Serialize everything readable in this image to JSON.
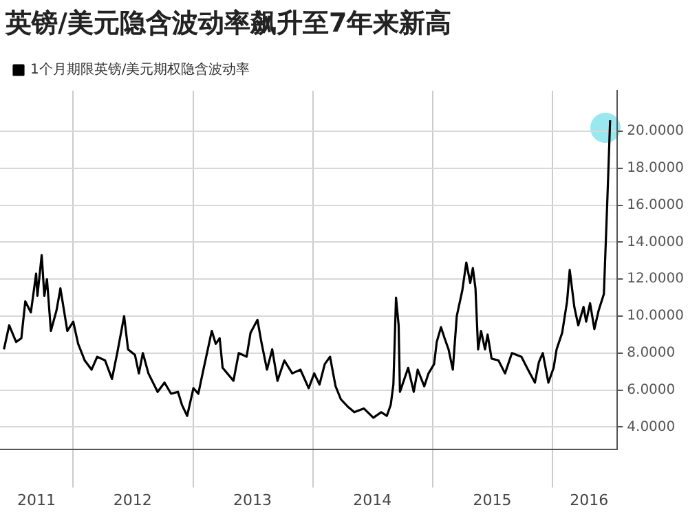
{
  "chart_data": {
    "type": "line",
    "title": "英镑/美元隐含波动率飙升至7年来新高",
    "legend": "top left",
    "grid": true,
    "marker": "none",
    "line_style": "solid",
    "xlim": [
      "2011-05-24",
      "2016-07-16"
    ],
    "xticks": [
      {
        "value": "2011-09-12",
        "label": "2011"
      },
      {
        "value": "2012-01-01",
        "label": null
      },
      {
        "value": "2012-07-01",
        "label": "2012"
      },
      {
        "value": "2013-01-01",
        "label": null
      },
      {
        "value": "2013-07-01",
        "label": "2013"
      },
      {
        "value": "2014-01-01",
        "label": null
      },
      {
        "value": "2014-07-01",
        "label": "2014"
      },
      {
        "value": "2015-01-01",
        "label": null
      },
      {
        "value": "2015-07-01",
        "label": "2015"
      },
      {
        "value": "2016-01-01",
        "label": null
      },
      {
        "value": "2016-04-21",
        "label": "2016"
      }
    ],
    "ylim": [
      2.8,
      22.2
    ],
    "yticks": [
      {
        "value": 4,
        "label": "4.0000"
      },
      {
        "value": 6,
        "label": "6.0000"
      },
      {
        "value": 8,
        "label": "8.0000"
      },
      {
        "value": 10,
        "label": "10.0000"
      },
      {
        "value": 12,
        "label": "12.0000"
      },
      {
        "value": 14,
        "label": "14.0000"
      },
      {
        "value": 16,
        "label": "16.0000"
      },
      {
        "value": 18,
        "label": "18.0000"
      },
      {
        "value": 20,
        "label": "20.0000"
      }
    ],
    "x": [
      "2011-06-05",
      "2011-06-21",
      "2011-07-12",
      "2011-07-28",
      "2011-08-09",
      "2011-08-26",
      "2011-09-11",
      "2011-09-15",
      "2011-09-28",
      "2011-10-06",
      "2011-10-14",
      "2011-10-26",
      "2011-11-12",
      "2011-11-24",
      "2011-12-15",
      "2012-01-02",
      "2012-01-17",
      "2012-02-06",
      "2012-02-27",
      "2012-03-15",
      "2012-04-08",
      "2012-04-29",
      "2012-05-15",
      "2012-06-05",
      "2012-06-17",
      "2012-07-08",
      "2012-07-20",
      "2012-08-01",
      "2012-08-18",
      "2012-09-15",
      "2012-10-06",
      "2012-10-26",
      "2012-11-16",
      "2012-11-28",
      "2012-12-14",
      "2013-01-02",
      "2013-01-17",
      "2013-01-30",
      "2013-02-27",
      "2013-03-11",
      "2013-03-23",
      "2013-04-01",
      "2013-05-04",
      "2013-05-20",
      "2013-06-13",
      "2013-06-25",
      "2013-07-16",
      "2013-07-28",
      "2013-08-14",
      "2013-08-30",
      "2013-09-15",
      "2013-10-06",
      "2013-10-30",
      "2013-11-24",
      "2013-12-19",
      "2014-01-05",
      "2014-01-21",
      "2014-02-06",
      "2014-02-22",
      "2014-03-11",
      "2014-03-27",
      "2014-04-17",
      "2014-05-07",
      "2014-06-05",
      "2014-07-04",
      "2014-07-28",
      "2014-08-14",
      "2014-08-26",
      "2014-09-03",
      "2014-09-11",
      "2014-09-19",
      "2014-09-23",
      "2014-10-18",
      "2014-11-04",
      "2014-11-16",
      "2014-12-06",
      "2014-12-19",
      "2015-01-05",
      "2015-01-13",
      "2015-01-26",
      "2015-02-06",
      "2015-02-18",
      "2015-03-03",
      "2015-03-15",
      "2015-04-01",
      "2015-04-13",
      "2015-04-25",
      "2015-05-03",
      "2015-05-11",
      "2015-05-19",
      "2015-05-28",
      "2015-06-09",
      "2015-06-17",
      "2015-06-29",
      "2015-07-20",
      "2015-08-09",
      "2015-08-30",
      "2015-09-28",
      "2015-10-18",
      "2015-11-08",
      "2015-11-20",
      "2015-12-02",
      "2015-12-19",
      "2016-01-04",
      "2016-01-13",
      "2016-01-30",
      "2016-02-14",
      "2016-02-22",
      "2016-03-07",
      "2016-03-19",
      "2016-04-04",
      "2016-04-12",
      "2016-04-24",
      "2016-05-07",
      "2016-05-20",
      "2016-06-05",
      "2016-06-16",
      "2016-06-24"
    ],
    "series": [
      {
        "name": "1个月期限英镑/美元期权隐含波动率",
        "color": "#000000",
        "values": [
          8.2,
          9.5,
          8.6,
          8.8,
          10.8,
          10.2,
          12.3,
          11.1,
          13.3,
          11.1,
          12.0,
          9.2,
          10.3,
          11.5,
          9.2,
          9.7,
          8.5,
          7.6,
          7.1,
          7.8,
          7.6,
          6.6,
          8.0,
          10.0,
          8.2,
          7.9,
          6.9,
          8.0,
          6.9,
          5.9,
          6.4,
          5.8,
          5.9,
          5.2,
          4.6,
          6.1,
          5.8,
          6.9,
          9.2,
          8.5,
          8.8,
          7.2,
          6.5,
          8.0,
          7.8,
          9.1,
          9.8,
          8.6,
          7.1,
          8.2,
          6.5,
          7.6,
          6.9,
          7.1,
          6.1,
          6.9,
          6.3,
          7.4,
          7.8,
          6.2,
          5.5,
          5.1,
          4.8,
          5.0,
          4.5,
          4.8,
          4.6,
          5.2,
          6.3,
          11.0,
          9.5,
          5.9,
          7.2,
          5.9,
          7.1,
          6.2,
          6.9,
          7.4,
          8.6,
          9.4,
          8.8,
          8.2,
          7.1,
          10.0,
          11.4,
          12.9,
          11.8,
          12.6,
          11.5,
          8.2,
          9.2,
          8.2,
          9.0,
          7.7,
          7.6,
          6.9,
          8.0,
          7.8,
          7.1,
          6.4,
          7.5,
          8.0,
          6.4,
          7.2,
          8.2,
          9.1,
          10.8,
          12.5,
          10.5,
          9.5,
          10.5,
          9.7,
          10.7,
          9.3,
          10.3,
          11.2,
          16.5,
          20.6
        ]
      }
    ]
  }
}
